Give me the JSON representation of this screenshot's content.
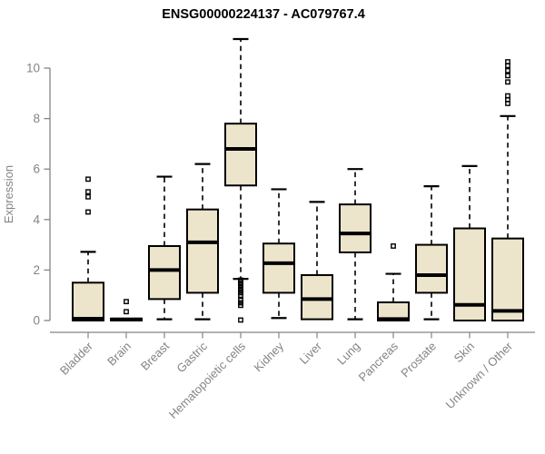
{
  "title": "ENSG00000224137 - AC079767.4",
  "chart_data": {
    "type": "boxplot",
    "title": "ENSG00000224137 - AC079767.4",
    "ylabel": "Expression",
    "yticks": [
      0,
      2,
      4,
      6,
      8,
      10
    ],
    "axis_range": [
      0,
      10
    ],
    "grid": "off",
    "legend": "none",
    "box_fill": "#ECE5CB",
    "box_stroke": "#000000",
    "axis_color": "#848484",
    "categories": [
      "Bladder",
      "Brain",
      "Breast",
      "Gastric",
      "Hematopoietic cells",
      "Kidney",
      "Liver",
      "Lung",
      "Pancreas",
      "Prostate",
      "Skin",
      "Unknown / Other"
    ],
    "series": [
      {
        "category": "Bladder",
        "q1": 0,
        "median": 0.07,
        "q3": 1.5,
        "whisker_low": 0,
        "whisker_high": 2.72,
        "outliers": [
          5.6,
          5.1,
          4.9,
          4.3
        ]
      },
      {
        "category": "Brain",
        "q1": 0,
        "median": 0.04,
        "q3": 0.08,
        "whisker_low": 0,
        "whisker_high": 0.08,
        "outliers": [
          0.75,
          0.35
        ]
      },
      {
        "category": "Breast",
        "q1": 0.85,
        "median": 2.0,
        "q3": 2.95,
        "whisker_low": 0.05,
        "whisker_high": 5.7,
        "outliers": []
      },
      {
        "category": "Gastric",
        "q1": 1.1,
        "median": 3.1,
        "q3": 4.4,
        "whisker_low": 0.05,
        "whisker_high": 6.2,
        "outliers": []
      },
      {
        "category": "Hematopoietic cells",
        "q1": 5.35,
        "median": 6.8,
        "q3": 7.8,
        "whisker_low": 1.65,
        "whisker_high": 11.15,
        "outliers": [
          1.6,
          1.5,
          1.4,
          1.3,
          1.2,
          1.1,
          1.0,
          0.8,
          0.7,
          0.6,
          0.02
        ]
      },
      {
        "category": "Kidney",
        "q1": 1.1,
        "median": 2.27,
        "q3": 3.05,
        "whisker_low": 0.1,
        "whisker_high": 5.2,
        "outliers": []
      },
      {
        "category": "Liver",
        "q1": 0.05,
        "median": 0.85,
        "q3": 1.8,
        "whisker_low": 0.05,
        "whisker_high": 4.7,
        "outliers": []
      },
      {
        "category": "Lung",
        "q1": 2.7,
        "median": 3.45,
        "q3": 4.6,
        "whisker_low": 0.05,
        "whisker_high": 6.0,
        "outliers": []
      },
      {
        "category": "Pancreas",
        "q1": 0,
        "median": 0.06,
        "q3": 0.72,
        "whisker_low": 0,
        "whisker_high": 1.85,
        "outliers": [
          2.95
        ]
      },
      {
        "category": "Prostate",
        "q1": 1.1,
        "median": 1.8,
        "q3": 3.0,
        "whisker_low": 0.05,
        "whisker_high": 5.32,
        "outliers": []
      },
      {
        "category": "Skin",
        "q1": 0,
        "median": 0.62,
        "q3": 3.65,
        "whisker_low": 0,
        "whisker_high": 6.12,
        "outliers": []
      },
      {
        "category": "Unknown / Other",
        "q1": 0,
        "median": 0.38,
        "q3": 3.25,
        "whisker_low": 0,
        "whisker_high": 8.1,
        "outliers": [
          10.25,
          10.1,
          9.9,
          9.7,
          9.45,
          8.9,
          8.75,
          8.6
        ]
      }
    ]
  }
}
